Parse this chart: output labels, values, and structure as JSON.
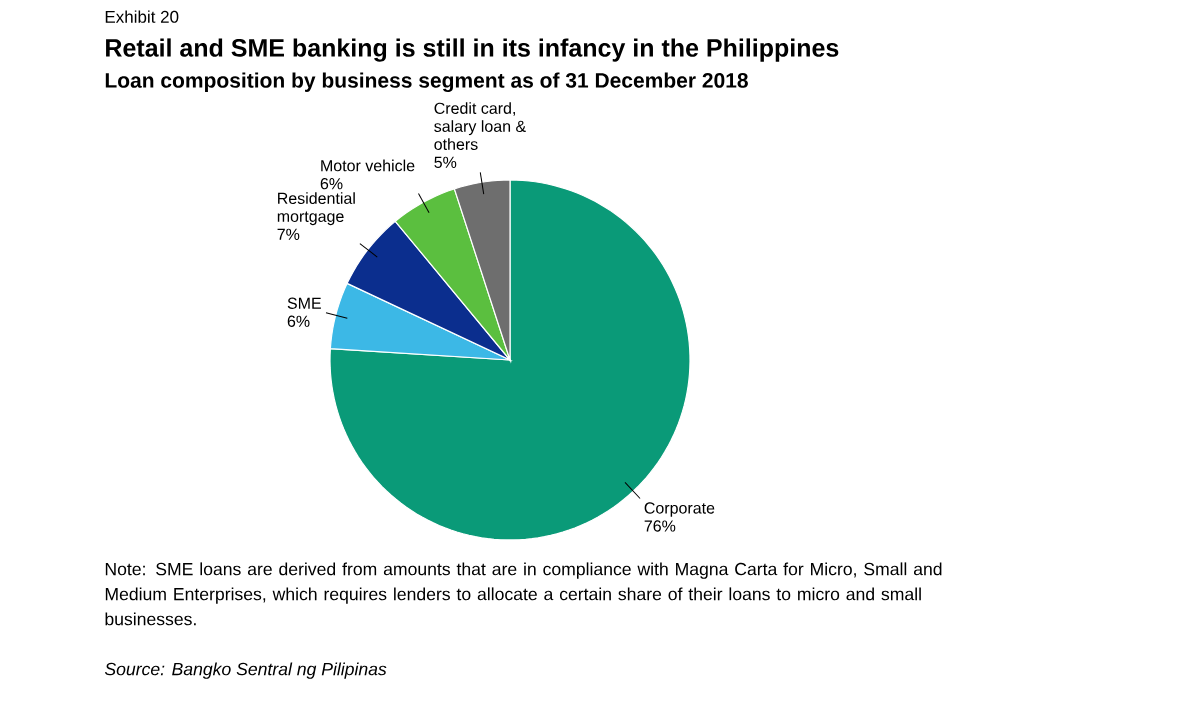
{
  "chart_data": {
    "type": "pie",
    "title": "Retail and SME banking is still in its infancy in the Philippines",
    "subtitle": "Loan composition by business segment as of 31 December 2018",
    "categories": [
      "Corporate",
      "SME",
      "Residential mortgage",
      "Motor vehicle",
      "Credit card, salary loan & others"
    ],
    "values": [
      76,
      6,
      7,
      6,
      5
    ],
    "value_labels": [
      "76%",
      "6%",
      "7%",
      "6%",
      "5%"
    ],
    "colors": [
      "#0a9a78",
      "#3cb8e6",
      "#0b2e8e",
      "#5bbf3f",
      "#6e6e6e"
    ],
    "annotations": [
      "Exhibit 20",
      "Note: SME loans are derived from amounts that are in compliance with Magna Carta for Micro, Small and Medium Enterprises, which requires lenders to allocate a certain share of their loans to micro and small businesses.",
      "*Source: Bangko Sentral ng Pilipinas*"
    ]
  }
}
